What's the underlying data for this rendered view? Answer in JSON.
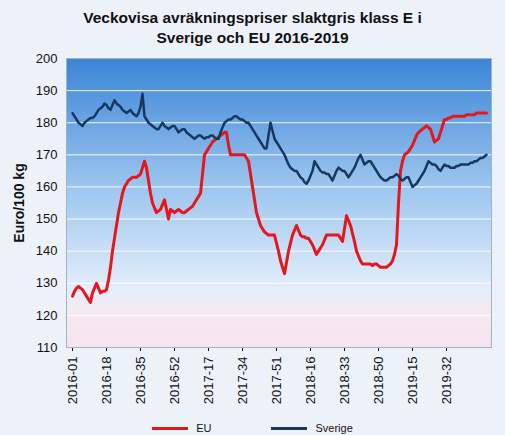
{
  "chart_data": {
    "type": "line",
    "title": "Veckovisa avräkningspriser slaktgris klass E i Sverige och EU 2016-2019",
    "y_label": "Euro/100 kg",
    "categories": [
      "2016-01",
      null,
      null,
      null,
      null,
      null,
      null,
      null,
      null,
      null,
      null,
      null,
      null,
      null,
      null,
      null,
      null,
      "2016-18",
      null,
      null,
      null,
      null,
      null,
      null,
      null,
      null,
      null,
      null,
      null,
      null,
      null,
      null,
      null,
      null,
      "2016-35",
      null,
      null,
      null,
      null,
      null,
      null,
      null,
      null,
      null,
      null,
      null,
      null,
      null,
      null,
      null,
      null,
      "2016-52",
      null,
      null,
      null,
      null,
      null,
      null,
      null,
      null,
      null,
      null,
      null,
      null,
      null,
      null,
      null,
      null,
      "2017-17",
      null,
      null,
      null,
      null,
      null,
      null,
      null,
      null,
      null,
      null,
      null,
      null,
      null,
      null,
      null,
      null,
      "2017-34",
      null,
      null,
      null,
      null,
      null,
      null,
      null,
      null,
      null,
      null,
      null,
      null,
      null,
      null,
      null,
      null,
      "2017-51",
      null,
      null,
      null,
      null,
      null,
      null,
      null,
      null,
      null,
      null,
      null,
      null,
      null,
      null,
      null,
      null,
      "2018-16",
      null,
      null,
      null,
      null,
      null,
      null,
      null,
      null,
      null,
      null,
      null,
      null,
      null,
      null,
      null,
      null,
      "2018-33",
      null,
      null,
      null,
      null,
      null,
      null,
      null,
      null,
      null,
      null,
      null,
      null,
      null,
      null,
      null,
      null,
      "2018-50",
      null,
      null,
      null,
      null,
      null,
      null,
      null,
      null,
      null,
      null,
      null,
      null,
      null,
      null,
      null,
      null,
      "2019-15",
      null,
      null,
      null,
      null,
      null,
      null,
      null,
      null,
      null,
      null,
      null,
      null,
      null,
      null,
      null,
      null,
      "2019-32",
      null,
      null,
      null,
      null,
      null,
      null,
      null,
      null,
      null,
      null,
      null,
      null,
      null,
      null,
      null,
      null,
      null,
      null,
      null,
      null
    ],
    "series": [
      {
        "name": "EU",
        "color": "#e3171d",
        "values": [
          126,
          127.5,
          128.5,
          129,
          128.5,
          128,
          127,
          126,
          125,
          124,
          127,
          128.5,
          130,
          128.5,
          127,
          127.5,
          127.5,
          128,
          131,
          135,
          140,
          144,
          148,
          152,
          155,
          158,
          160,
          161,
          162,
          162.5,
          163,
          163,
          163,
          163.5,
          164,
          166,
          168,
          166,
          162,
          158,
          155,
          153.5,
          152,
          152.5,
          153,
          154.5,
          156,
          153,
          150,
          153,
          152.5,
          152,
          152.5,
          153,
          152.5,
          152,
          152,
          152.5,
          153,
          153.5,
          154,
          155,
          156,
          157,
          158,
          164,
          170,
          171,
          172,
          173,
          174,
          174.5,
          175,
          175.5,
          176,
          176.5,
          177,
          177,
          173,
          170,
          170,
          170,
          170,
          170,
          170,
          170,
          170,
          169,
          168,
          164,
          160,
          156,
          152,
          150,
          148,
          147,
          146,
          145.5,
          145,
          145,
          145,
          145,
          142.5,
          140,
          137,
          135,
          133,
          136.5,
          140,
          142.5,
          145,
          146.5,
          148,
          146.5,
          145,
          144.5,
          144.5,
          144,
          144,
          143,
          142,
          140.5,
          139,
          140,
          141,
          142,
          143.5,
          145,
          145,
          145,
          145,
          145,
          145,
          145,
          144,
          143,
          147,
          151,
          149.5,
          148,
          145.5,
          143,
          140,
          138.5,
          137,
          136,
          136,
          136,
          136,
          136,
          135.5,
          136,
          136,
          135.5,
          135,
          135,
          135,
          135,
          135.5,
          136,
          137,
          139,
          142,
          155,
          165,
          168,
          170,
          170.5,
          171,
          172,
          173,
          174.5,
          176,
          177,
          177.5,
          178,
          178.5,
          179,
          178.5,
          178,
          176,
          174,
          174.5,
          175,
          177,
          179,
          181,
          181,
          181.5,
          181.5,
          182,
          182,
          182,
          182,
          182,
          182,
          182,
          182.5,
          182.5,
          182.5,
          182.5,
          182.5,
          183,
          183,
          183,
          183,
          183,
          183
        ]
      },
      {
        "name": "Sverige",
        "color": "#17375e",
        "values": [
          183,
          182,
          181,
          180,
          179.5,
          179,
          180,
          180.5,
          181,
          181.5,
          181.5,
          182,
          183,
          184,
          184.5,
          185,
          186,
          185.5,
          184.5,
          184,
          185.5,
          187,
          186,
          185.5,
          185,
          184,
          183.5,
          183,
          183.5,
          184,
          183,
          182.5,
          182,
          183,
          185,
          189,
          182,
          181,
          180,
          179.5,
          179,
          178.5,
          178,
          178,
          179,
          180,
          179,
          178.5,
          178,
          178.5,
          179,
          179,
          178,
          177,
          177.5,
          178,
          178,
          177,
          176.5,
          176,
          175.5,
          175,
          175.5,
          176,
          176,
          175.5,
          175,
          175.5,
          175.5,
          176,
          176,
          175.5,
          175,
          175,
          177,
          178.5,
          180,
          180.5,
          181,
          181,
          181.5,
          182,
          182,
          181.5,
          181,
          181,
          180.5,
          180,
          180,
          179,
          178,
          177,
          176,
          175,
          174,
          173,
          172,
          172,
          176,
          180,
          177.5,
          175,
          174,
          173,
          172,
          171,
          170,
          168.5,
          167,
          166,
          165.5,
          165,
          165,
          164,
          163,
          162.5,
          161.5,
          161,
          162,
          163.5,
          165,
          168,
          167,
          166,
          165,
          164.5,
          164.5,
          164,
          164,
          163,
          162,
          163.5,
          165,
          166,
          165.5,
          165,
          165,
          164,
          163,
          164,
          165,
          166,
          167.5,
          169,
          170,
          168.5,
          167,
          167.5,
          168,
          168,
          167,
          166,
          165,
          164,
          163,
          162.5,
          162,
          162,
          162.5,
          163,
          163,
          163.5,
          164,
          163.5,
          162.5,
          162,
          162.5,
          163,
          163,
          161.5,
          160,
          160.5,
          161,
          162,
          163,
          164,
          165,
          166.5,
          168,
          167.5,
          167,
          167,
          166.5,
          165.5,
          165,
          166,
          167,
          166.5,
          166.5,
          166,
          166,
          166,
          166.5,
          166.5,
          167,
          167,
          167,
          167,
          167,
          167.5,
          167.5,
          168,
          168,
          168.5,
          169,
          169,
          169.5,
          170
        ]
      }
    ],
    "ylim": [
      110,
      200
    ],
    "yticks": [
      110,
      120,
      130,
      140,
      150,
      160,
      170,
      180,
      190,
      200
    ],
    "grid": true,
    "legend": "bottom"
  }
}
